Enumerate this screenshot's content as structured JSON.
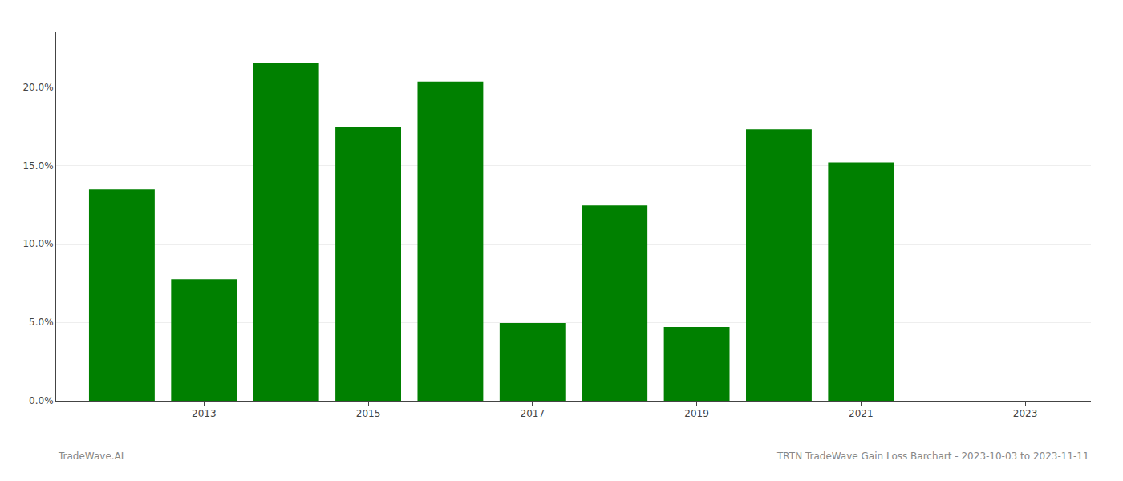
{
  "chart_data": {
    "type": "bar",
    "x": [
      2012,
      2013,
      2014,
      2015,
      2016,
      2017,
      2018,
      2019,
      2020,
      2021
    ],
    "values": [
      0.1348,
      0.0775,
      0.2155,
      0.1745,
      0.2035,
      0.0495,
      0.1245,
      0.047,
      0.173,
      0.152
    ],
    "color": "#008000",
    "xlim": [
      2011.2,
      2023.8
    ],
    "xticks": [
      2013,
      2015,
      2017,
      2019,
      2021,
      2023
    ],
    "ylim": [
      0,
      0.235
    ],
    "yticks": [
      {
        "value": 0.0,
        "label": "0.0%"
      },
      {
        "value": 0.05,
        "label": "5.0%"
      },
      {
        "value": 0.1,
        "label": "10.0%"
      },
      {
        "value": 0.15,
        "label": "15.0%"
      },
      {
        "value": 0.2,
        "label": "20.0%"
      }
    ],
    "grid": true,
    "annotations": [
      "TradeWave.AI",
      "TRTN TradeWave Gain Loss Barchart - 2023-10-03 to 2023-11-11"
    ]
  }
}
